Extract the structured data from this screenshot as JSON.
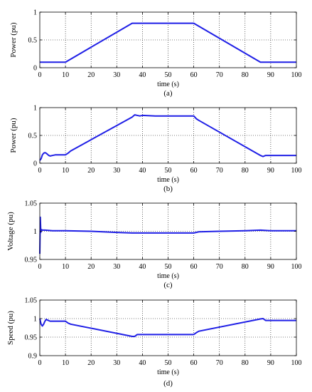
{
  "chart_data": [
    {
      "type": "line",
      "caption": "(a)",
      "ylabel": "Power (pu)",
      "xlabel": "time (s)",
      "xlim": [
        0,
        100
      ],
      "ylim": [
        0,
        1
      ],
      "xticks": [
        0,
        10,
        20,
        30,
        40,
        50,
        60,
        70,
        80,
        90,
        100
      ],
      "yticks": [
        0,
        0.5,
        1
      ],
      "ytick_labels": [
        "0",
        "0.5",
        "1"
      ],
      "grid": true,
      "color": "#1f1fe6",
      "series": [
        {
          "x": [
            0,
            10,
            36,
            60,
            86,
            100
          ],
          "y": [
            0.1,
            0.1,
            0.8,
            0.8,
            0.1,
            0.1
          ]
        }
      ]
    },
    {
      "type": "line",
      "caption": "(b)",
      "ylabel": "Power (pu)",
      "xlabel": "time (s)",
      "xlim": [
        0,
        100
      ],
      "ylim": [
        0,
        1
      ],
      "xticks": [
        0,
        10,
        20,
        30,
        40,
        50,
        60,
        70,
        80,
        90,
        100
      ],
      "yticks": [
        0,
        0.5,
        1
      ],
      "ytick_labels": [
        "0",
        "0.5",
        "1"
      ],
      "grid": true,
      "color": "#1f1fe6",
      "series": [
        {
          "x": [
            0,
            0.5,
            1,
            1.5,
            2,
            2.5,
            3,
            3.5,
            4,
            5,
            6,
            7,
            8,
            10,
            11,
            12,
            36,
            37,
            38,
            39,
            40,
            45,
            50,
            55,
            60,
            61,
            62,
            86,
            87,
            88,
            90,
            100
          ],
          "y": [
            0.05,
            0.08,
            0.15,
            0.18,
            0.19,
            0.18,
            0.16,
            0.14,
            0.13,
            0.14,
            0.15,
            0.15,
            0.15,
            0.15,
            0.18,
            0.22,
            0.83,
            0.87,
            0.86,
            0.85,
            0.86,
            0.85,
            0.85,
            0.85,
            0.85,
            0.8,
            0.77,
            0.14,
            0.12,
            0.14,
            0.14,
            0.14
          ]
        }
      ]
    },
    {
      "type": "line",
      "caption": "(c)",
      "ylabel": "Voltage (pu)",
      "xlabel": "time (s)",
      "xlim": [
        0,
        100
      ],
      "ylim": [
        0.95,
        1.05
      ],
      "xticks": [
        0,
        10,
        20,
        30,
        40,
        50,
        60,
        70,
        80,
        90,
        100
      ],
      "yticks": [
        0.95,
        1,
        1.05
      ],
      "ytick_labels": [
        "0.95",
        "1",
        "1.05"
      ],
      "grid": true,
      "color": "#1f1fe6",
      "series": [
        {
          "x": [
            0,
            0.2,
            0.4,
            0.6,
            1,
            2,
            5,
            10,
            20,
            30,
            36,
            40,
            50,
            60,
            62,
            70,
            80,
            86,
            90,
            100
          ],
          "y": [
            0.96,
            1.025,
            0.998,
            1.003,
            1.002,
            1.002,
            1.001,
            1.001,
            1.0,
            0.998,
            0.997,
            0.997,
            0.997,
            0.997,
            0.999,
            1.0,
            1.001,
            1.002,
            1.001,
            1.001
          ]
        }
      ]
    },
    {
      "type": "line",
      "caption": "(d)",
      "ylabel": "Speed (pu)",
      "xlabel": "time (s)",
      "xlim": [
        0,
        100
      ],
      "ylim": [
        0.9,
        1.05
      ],
      "xticks": [
        0,
        10,
        20,
        30,
        40,
        50,
        60,
        70,
        80,
        90,
        100
      ],
      "yticks": [
        0.9,
        0.95,
        1,
        1.05
      ],
      "ytick_labels": [
        "0.9",
        "0.95",
        "1",
        "1.05"
      ],
      "grid": true,
      "color": "#1f1fe6",
      "series": [
        {
          "x": [
            0,
            0.5,
            1,
            1.5,
            2,
            2.5,
            3,
            4,
            5,
            6,
            8,
            10,
            11,
            12,
            36,
            37,
            38,
            40,
            50,
            60,
            61,
            62,
            86,
            87,
            88,
            90,
            100
          ],
          "y": [
            1.0,
            0.985,
            0.98,
            0.985,
            0.993,
            0.998,
            0.996,
            0.993,
            0.993,
            0.993,
            0.993,
            0.993,
            0.988,
            0.985,
            0.952,
            0.952,
            0.957,
            0.957,
            0.957,
            0.957,
            0.962,
            0.966,
            0.999,
            1.0,
            0.995,
            0.995,
            0.995
          ]
        }
      ]
    }
  ]
}
